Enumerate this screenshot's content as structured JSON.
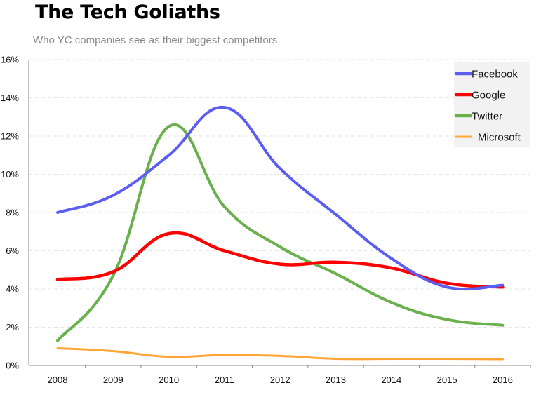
{
  "chart_data": {
    "type": "line",
    "title": "The Tech Goliaths",
    "subtitle": "Who YC companies see as their biggest competitors",
    "xlabel": "",
    "ylabel": "",
    "x": [
      "2008",
      "2009",
      "2010",
      "2011",
      "2012",
      "2013",
      "2014",
      "2015",
      "2016"
    ],
    "ylim": [
      0,
      16
    ],
    "yticks": [
      0,
      2,
      4,
      6,
      8,
      10,
      12,
      14,
      16
    ],
    "ytick_labels": [
      "0%",
      "2%",
      "4%",
      "6%",
      "8%",
      "10%",
      "12%",
      "14%",
      "16%"
    ],
    "grid": "horizontal dashed",
    "legend_position": "top-right",
    "series": [
      {
        "name": "Facebook",
        "color": "#5b5ef0",
        "values": [
          8.0,
          8.9,
          11.0,
          13.5,
          10.3,
          7.9,
          5.6,
          4.1,
          4.2
        ]
      },
      {
        "name": "Google",
        "color": "#ff0000",
        "values": [
          4.5,
          4.9,
          6.9,
          6.0,
          5.3,
          5.4,
          5.1,
          4.3,
          4.1
        ]
      },
      {
        "name": "Twitter",
        "color": "#6ab04c",
        "values": [
          1.3,
          4.7,
          12.5,
          8.3,
          6.2,
          4.8,
          3.3,
          2.4,
          2.1
        ]
      },
      {
        "name": "Microsoft",
        "color": "#ffa535",
        "values": [
          0.9,
          0.75,
          0.45,
          0.55,
          0.5,
          0.35,
          0.35,
          0.35,
          0.33
        ]
      }
    ]
  }
}
